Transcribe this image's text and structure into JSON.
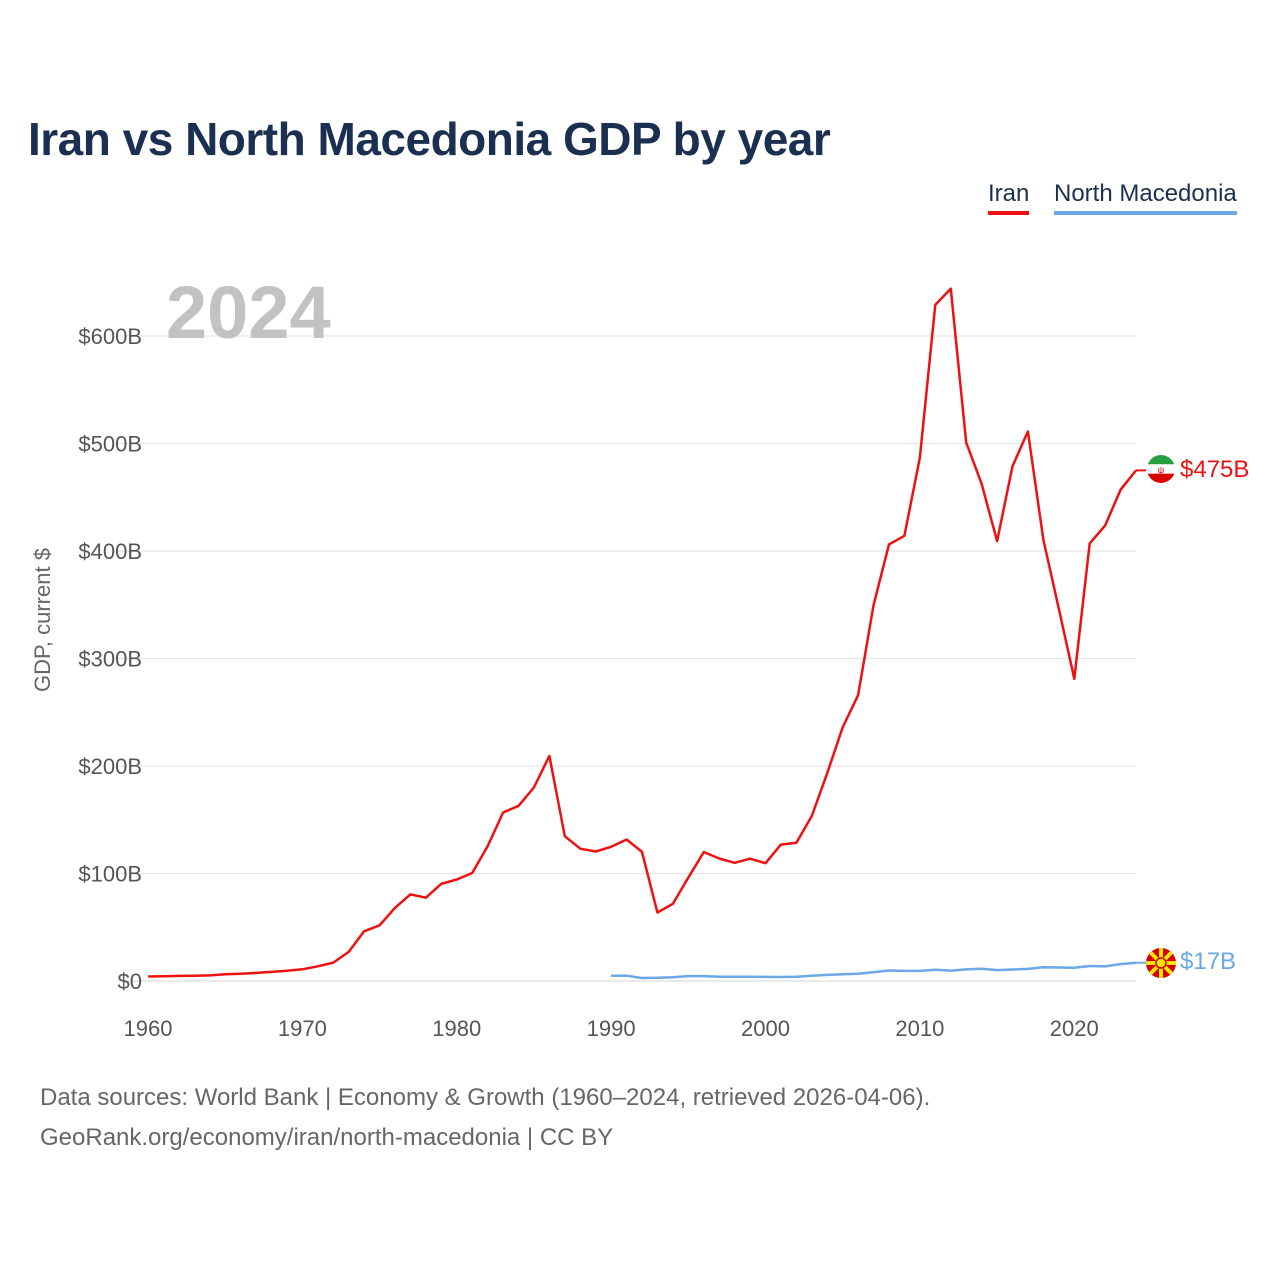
{
  "chart_data": {
    "type": "line",
    "title": "Iran vs North Macedonia GDP by year",
    "year_label": "2024",
    "ylabel": "GDP, current $",
    "xlabel": "",
    "xlim": [
      1960,
      2024
    ],
    "ylim": [
      0,
      650
    ],
    "x_ticks": [
      1960,
      1970,
      1980,
      1990,
      2000,
      2010,
      2020
    ],
    "y_ticks": [
      0,
      100,
      200,
      300,
      400,
      500,
      600
    ],
    "y_tick_labels": [
      "$0",
      "$100B",
      "$200B",
      "$300B",
      "$400B",
      "$500B",
      "$600B"
    ],
    "grid": true,
    "legend_position": "top-right",
    "series": [
      {
        "name": "Iran",
        "color": "#ee1111",
        "end_label": "$475B",
        "flag": "iran-flag-icon",
        "x": [
          1960,
          1961,
          1962,
          1963,
          1964,
          1965,
          1966,
          1967,
          1968,
          1969,
          1970,
          1971,
          1972,
          1973,
          1974,
          1975,
          1976,
          1977,
          1978,
          1979,
          1980,
          1981,
          1982,
          1983,
          1984,
          1985,
          1986,
          1987,
          1988,
          1989,
          1990,
          1991,
          1992,
          1993,
          1994,
          1995,
          1996,
          1997,
          1998,
          1999,
          2000,
          2001,
          2002,
          2003,
          2004,
          2005,
          2006,
          2007,
          2008,
          2009,
          2010,
          2011,
          2012,
          2013,
          2014,
          2015,
          2016,
          2017,
          2018,
          2019,
          2020,
          2021,
          2022,
          2023,
          2024
        ],
        "values": [
          4.2,
          4.4,
          4.7,
          4.9,
          5.2,
          6.2,
          6.8,
          7.5,
          8.5,
          9.6,
          10.9,
          13.7,
          17.1,
          27.1,
          46.2,
          51.8,
          68.1,
          80.6,
          77.5,
          90.4,
          94.4,
          100.5,
          125.3,
          156.7,
          162.9,
          180.0,
          209.4,
          134.7,
          123.1,
          120.5,
          124.8,
          131.6,
          120.1,
          63.7,
          71.8,
          96.2,
          120.0,
          114.0,
          110.0,
          113.8,
          109.6,
          126.9,
          128.6,
          153.5,
          193.6,
          236.0,
          265.9,
          349.9,
          406.1,
          414.1,
          487.1,
          629.0,
          644.0,
          500.8,
          462.6,
          409.2,
          478.8,
          511.2,
          410.3,
          346.4,
          281.1,
          407.1,
          423.6,
          457.0,
          475.0
        ]
      },
      {
        "name": "North Macedonia",
        "color": "#6aa8e6",
        "end_label": "$17B",
        "flag": "north-macedonia-flag-icon",
        "x": [
          1990,
          1991,
          1992,
          1993,
          1994,
          1995,
          1996,
          1997,
          1998,
          1999,
          2000,
          2001,
          2002,
          2003,
          2004,
          2005,
          2006,
          2007,
          2008,
          2009,
          2010,
          2011,
          2012,
          2013,
          2014,
          2015,
          2016,
          2017,
          2018,
          2019,
          2020,
          2021,
          2022,
          2023,
          2024
        ],
        "values": [
          4.9,
          4.9,
          2.8,
          3.0,
          3.5,
          4.6,
          4.6,
          3.9,
          3.9,
          4.0,
          3.8,
          3.7,
          3.9,
          4.8,
          5.7,
          6.3,
          6.8,
          8.3,
          9.8,
          9.4,
          9.4,
          10.5,
          9.7,
          10.8,
          11.4,
          10.1,
          10.7,
          11.3,
          12.7,
          12.6,
          12.4,
          14.0,
          13.6,
          15.7,
          17.0
        ]
      }
    ]
  },
  "footer": {
    "sources": "Data sources: World Bank | Economy & Growth (1960–2024, retrieved 2026-04-06).",
    "credit": "GeoRank.org/economy/iran/north-macedonia | CC BY"
  }
}
